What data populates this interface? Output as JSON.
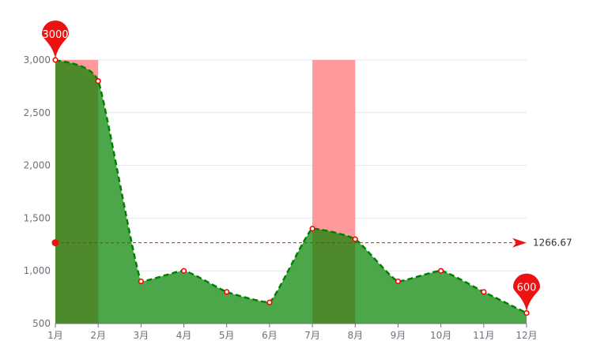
{
  "chart_data": {
    "type": "area",
    "categories": [
      "1月",
      "2月",
      "3月",
      "4月",
      "5月",
      "6月",
      "7月",
      "8月",
      "9月",
      "10月",
      "11月",
      "12月"
    ],
    "series": [
      {
        "values": [
          3000,
          2800,
          900,
          1000,
          800,
          700,
          1400,
          1300,
          900,
          1000,
          800,
          600
        ]
      }
    ],
    "ylim": [
      500,
      3000
    ],
    "yticks": [
      500,
      1000,
      1500,
      2000,
      2500,
      3000
    ],
    "ytick_labels": [
      "500",
      "1,000",
      "1,500",
      "2,000",
      "2,500",
      "3,000"
    ],
    "grid": true,
    "highlight_ranges": [
      {
        "from": "1月",
        "to": "2月"
      },
      {
        "from": "7月",
        "to": "8月"
      }
    ],
    "mark_points": [
      {
        "category": "1月",
        "value": 3000,
        "label": "3000"
      },
      {
        "category": "12月",
        "value": 600,
        "label": "600"
      }
    ],
    "mark_line": {
      "value": 1266.67,
      "label": "1266.67"
    },
    "colors": {
      "area_fill": "#4ca64a",
      "area_fill_highlight": "#4d8a2c",
      "line": "#008000",
      "point": "#ff0000",
      "highlight_band": "#ff9a9c",
      "mark": "#ee1111",
      "avg_line": "#ee1111",
      "grid": "#e0e6f1",
      "axis": "#6e7079"
    }
  }
}
